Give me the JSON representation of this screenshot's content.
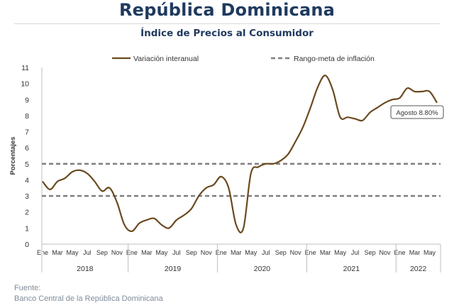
{
  "header": {
    "title": "República Dominicana",
    "subtitle": "Índice de Precios al Consumidor"
  },
  "footer": {
    "label": "Fuente:",
    "source": "Banco Central de la República Dominicana"
  },
  "colors": {
    "title": "#1f3a5f",
    "series_line": "#6b4a1f",
    "target_band": "#7f7f7f",
    "axis": "#bfbfbf"
  },
  "chart_data": {
    "type": "line",
    "ylabel": "Porcentajes",
    "ylim": [
      0,
      11
    ],
    "yticks": [
      0,
      1,
      2,
      3,
      4,
      5,
      6,
      7,
      8,
      9,
      10,
      11
    ],
    "grid": false,
    "legend_position": "top",
    "month_labels": [
      "Ene",
      "Mar",
      "May",
      "Jul",
      "Sep",
      "Nov"
    ],
    "years": [
      "2018",
      "2019",
      "2020",
      "2021",
      "2022"
    ],
    "series": [
      {
        "name": "Variación interanual",
        "style": "solid",
        "values": [
          3.9,
          3.4,
          3.9,
          4.1,
          4.5,
          4.6,
          4.4,
          3.9,
          3.3,
          3.5,
          2.6,
          1.2,
          0.8,
          1.3,
          1.5,
          1.6,
          1.2,
          1.0,
          1.5,
          1.8,
          2.2,
          3.0,
          3.5,
          3.7,
          4.2,
          3.5,
          1.2,
          1.0,
          4.4,
          4.8,
          5.0,
          5.0,
          5.2,
          5.6,
          6.4,
          7.3,
          8.5,
          9.8,
          10.5,
          9.6,
          7.9,
          7.9,
          7.8,
          7.7,
          8.2,
          8.5,
          8.8,
          9.0,
          9.1,
          9.7,
          9.5,
          9.5,
          9.5,
          8.8
        ]
      },
      {
        "name": "Rango-meta de inflación",
        "style": "dashed",
        "upper": 5,
        "lower": 3
      }
    ],
    "annotations": [
      {
        "text": "Agosto 8.80%",
        "value": 8.8
      }
    ]
  }
}
